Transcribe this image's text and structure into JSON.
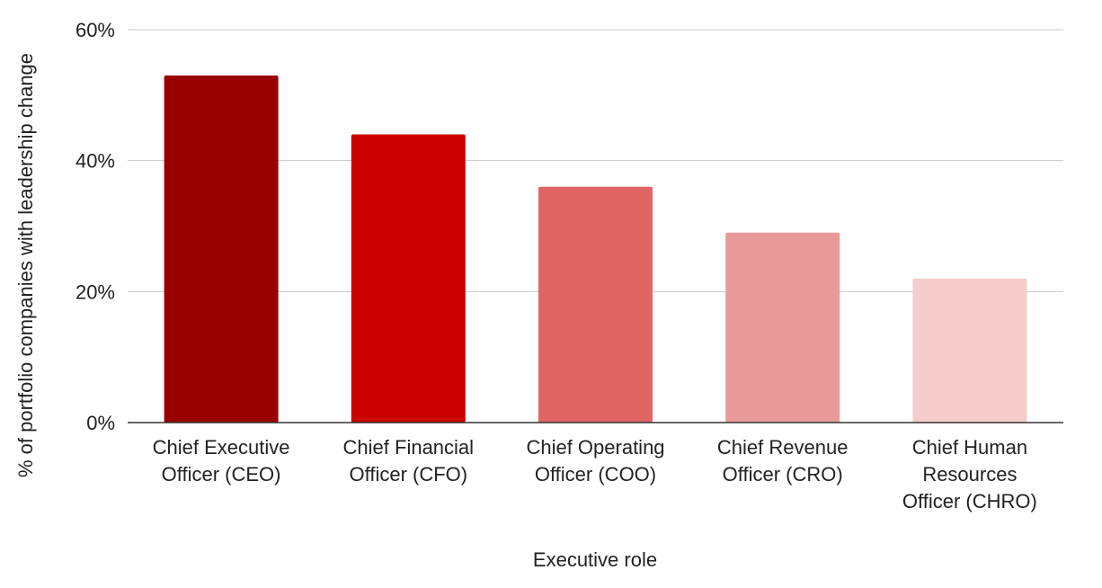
{
  "chart_data": {
    "type": "bar",
    "title": "",
    "xlabel": "Executive role",
    "ylabel": "% of portfolio companies with leadership change",
    "ylim": [
      0,
      60
    ],
    "yticks": [
      0,
      20,
      40,
      60
    ],
    "ytick_labels": [
      "0%",
      "20%",
      "40%",
      "60%"
    ],
    "grid": true,
    "categories": [
      [
        "Chief Executive",
        "Officer (CEO)"
      ],
      [
        "Chief Financial",
        "Officer (CFO)"
      ],
      [
        "Chief Operating",
        "Officer (COO)"
      ],
      [
        "Chief Revenue",
        "Officer (CRO)"
      ],
      [
        "Chief Human",
        "Resources",
        "Officer (CHRO)"
      ]
    ],
    "values": [
      53,
      44,
      36,
      29,
      22
    ],
    "colors": [
      "#990000",
      "#cc0000",
      "#e06666",
      "#ea9999",
      "#f4cccc"
    ],
    "gridline_color": "#c8c8c8",
    "axis_color": "#333333"
  }
}
